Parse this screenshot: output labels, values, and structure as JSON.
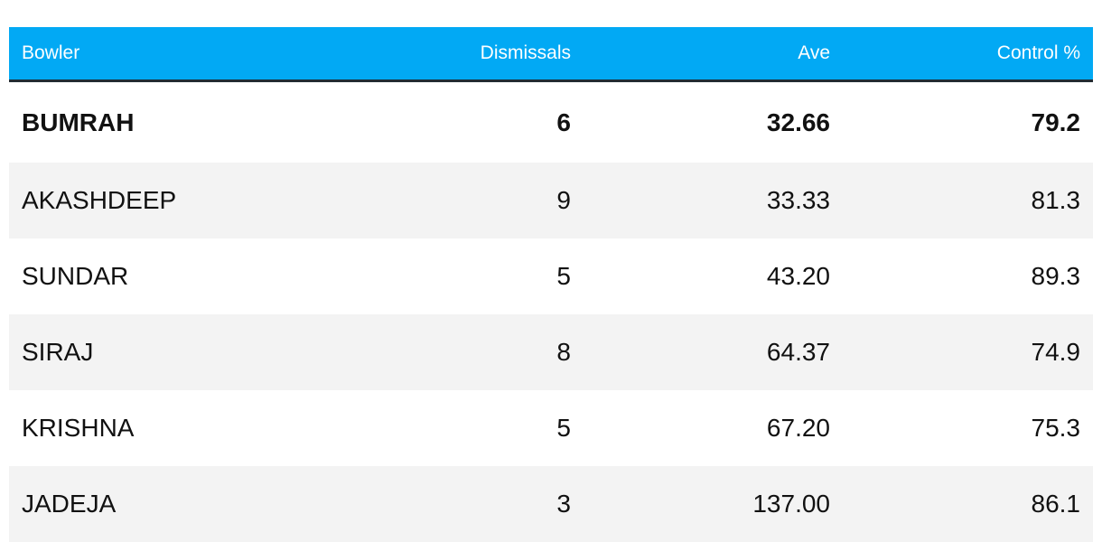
{
  "table": {
    "header": [
      "Bowler",
      "Dismissals",
      "Ave",
      "Control %"
    ],
    "rows": [
      [
        "BUMRAH",
        "6",
        "32.66",
        "79.2"
      ],
      [
        "AKASHDEEP",
        "9",
        "33.33",
        "81.3"
      ],
      [
        "SUNDAR",
        "5",
        "43.20",
        "89.3"
      ],
      [
        "SIRAJ",
        "8",
        "64.37",
        "74.9"
      ],
      [
        "KRISHNA",
        "5",
        "67.20",
        "75.3"
      ],
      [
        "JADEJA",
        "3",
        "137.00",
        "86.1"
      ]
    ]
  }
}
